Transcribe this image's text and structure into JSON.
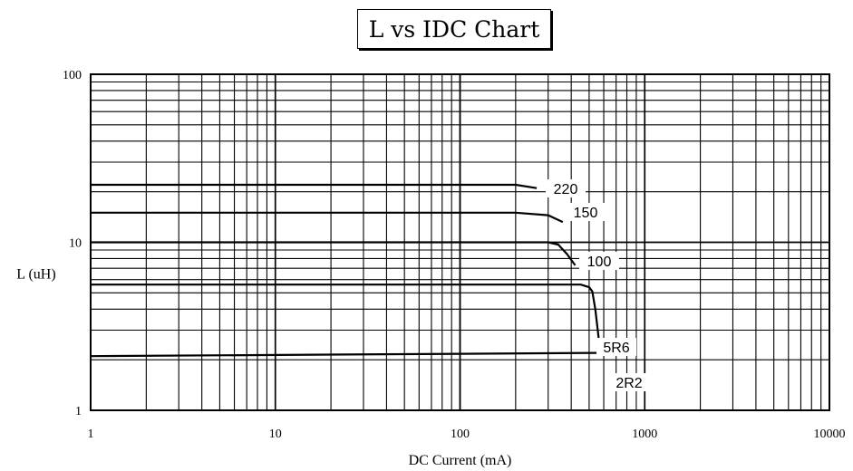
{
  "chart_data": {
    "type": "line",
    "title": "L vs IDC Chart",
    "xlabel": "DC Current (mA)",
    "ylabel": "L (uH)",
    "x_scale": "log",
    "y_scale": "log",
    "xlim": [
      1,
      10000
    ],
    "ylim": [
      1,
      100
    ],
    "x_ticks": [
      "1",
      "10",
      "100",
      "1000",
      "10000"
    ],
    "y_ticks": [
      "1",
      "10",
      "100"
    ],
    "grid": true,
    "series": [
      {
        "name": "220",
        "x": [
          1,
          200,
          260
        ],
        "y": [
          22,
          22,
          21
        ]
      },
      {
        "name": "150",
        "x": [
          1,
          200,
          300,
          360
        ],
        "y": [
          15,
          15,
          14.5,
          13.2
        ]
      },
      {
        "name": "100",
        "x": [
          1,
          300,
          340,
          380,
          420
        ],
        "y": [
          10,
          10,
          9.7,
          8.5,
          7.3
        ]
      },
      {
        "name": "5R6",
        "x": [
          1,
          450,
          500,
          520,
          540,
          570
        ],
        "y": [
          5.6,
          5.6,
          5.4,
          5.1,
          4,
          2.4
        ]
      },
      {
        "name": "2R2",
        "x": [
          1,
          700
        ],
        "y": [
          2.1,
          2.2
        ]
      }
    ]
  }
}
